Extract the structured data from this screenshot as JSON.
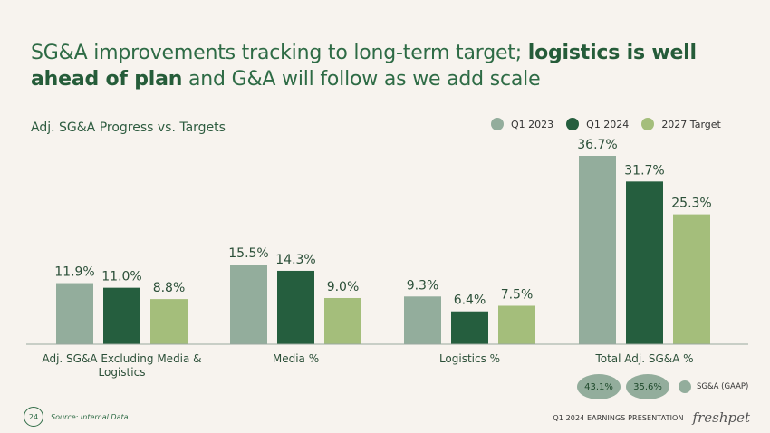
{
  "title": {
    "part1": "SG&A improvements tracking to long-term target; ",
    "bold1": "logistics is well ahead of plan",
    "part2": " and G&A will follow as we add scale"
  },
  "subtitle": "Adj. SG&A Progress vs. Targets",
  "colors": {
    "q1_2023": "#93ad9c",
    "q1_2024": "#255e3e",
    "target_2027": "#a4be7b",
    "axis": "#9aa89f"
  },
  "chart_data": {
    "type": "bar",
    "categories": [
      "Adj. SG&A Excluding Media & Logistics",
      "Media %",
      "Logistics %",
      "Total Adj. SG&A %"
    ],
    "category_lines": [
      [
        "Adj. SG&A Excluding Media &",
        "Logistics"
      ],
      [
        "Media %"
      ],
      [
        "Logistics %"
      ],
      [
        "Total Adj. SG&A %"
      ]
    ],
    "series": [
      {
        "name": "Q1 2023",
        "values": [
          11.9,
          15.5,
          9.3,
          36.7
        ],
        "labels": [
          "11.9%",
          "15.5%",
          "9.3%",
          "36.7%"
        ]
      },
      {
        "name": "Q1 2024",
        "values": [
          11.0,
          14.3,
          6.4,
          31.7
        ],
        "labels": [
          "11.0%",
          "14.3%",
          "6.4%",
          "31.7%"
        ]
      },
      {
        "name": "2027 Target",
        "values": [
          8.8,
          9.0,
          7.5,
          25.3
        ],
        "labels": [
          "8.8%",
          "9.0%",
          "7.5%",
          "25.3%"
        ]
      }
    ],
    "ylim": [
      0,
      40
    ],
    "legend_position": "top-right",
    "grid": false
  },
  "gaap": {
    "values": [
      "43.1%",
      "35.6%"
    ],
    "label": "SG&A (GAAP)"
  },
  "footer": {
    "page": "24",
    "source": "Source: Internal Data",
    "presentation": "Q1 2024 EARNINGS PRESENTATION",
    "logo": "freshpet"
  }
}
